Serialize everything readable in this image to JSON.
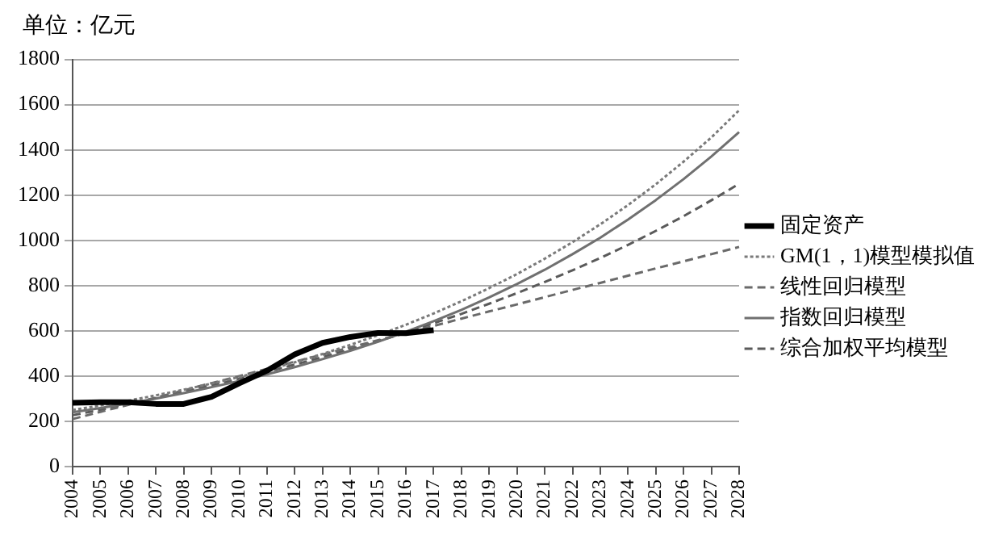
{
  "chart_data": {
    "type": "line",
    "ylabel": "单位：亿元",
    "categories": [
      "2004",
      "2005",
      "2006",
      "2007",
      "2008",
      "2009",
      "2010",
      "2011",
      "2012",
      "2013",
      "2014",
      "2015",
      "2016",
      "2017",
      "2018",
      "2019",
      "2020",
      "2021",
      "2022",
      "2023",
      "2024",
      "2025",
      "2026",
      "2027",
      "2028"
    ],
    "ylim": [
      0,
      1800
    ],
    "yticks": [
      0,
      200,
      400,
      600,
      800,
      1000,
      1200,
      1400,
      1600,
      1800
    ],
    "grid": "y",
    "legend": "right",
    "marker": "none",
    "series": [
      {
        "name": "固定资产",
        "color": "#000000",
        "line_style": "solid",
        "values": [
          282,
          285,
          285,
          277,
          277,
          308,
          368,
          424,
          496,
          547,
          573,
          591,
          590,
          603,
          null,
          null,
          null,
          null,
          null,
          null,
          null,
          null,
          null,
          null,
          null
        ]
      },
      {
        "name": "GM(1，1)模型模拟值",
        "color": "#7a7a7a",
        "line_style": "dotted",
        "values": [
          250,
          270,
          291,
          315,
          340,
          367,
          396,
          427,
          461,
          498,
          538,
          581,
          627,
          677,
          731,
          789,
          851,
          919,
          992,
          1071,
          1156,
          1248,
          1348,
          1455,
          1575
        ]
      },
      {
        "name": "线性回归模型",
        "color": "#6a6a6a",
        "line_style": "dashed",
        "values": [
          210,
          242,
          273,
          305,
          337,
          369,
          400,
          432,
          464,
          495,
          527,
          559,
          590,
          622,
          654,
          686,
          717,
          749,
          781,
          812,
          844,
          876,
          907,
          939,
          971
        ]
      },
      {
        "name": "指数回归模型",
        "color": "#707070",
        "line_style": "solid",
        "values": [
          240,
          259,
          279,
          301,
          325,
          351,
          378,
          408,
          440,
          475,
          512,
          552,
          596,
          643,
          693,
          748,
          807,
          870,
          939,
          1012,
          1092,
          1178,
          1271,
          1371,
          1479
        ]
      },
      {
        "name": "综合加权平均模型",
        "color": "#5a5a5a",
        "line_style": "dashed",
        "values": [
          227,
          251,
          276,
          303,
          330,
          359,
          388,
          419,
          451,
          484,
          519,
          555,
          593,
          634,
          675,
          720,
          767,
          816,
          868,
          922,
          980,
          1042,
          1107,
          1177,
          1250
        ]
      }
    ]
  }
}
